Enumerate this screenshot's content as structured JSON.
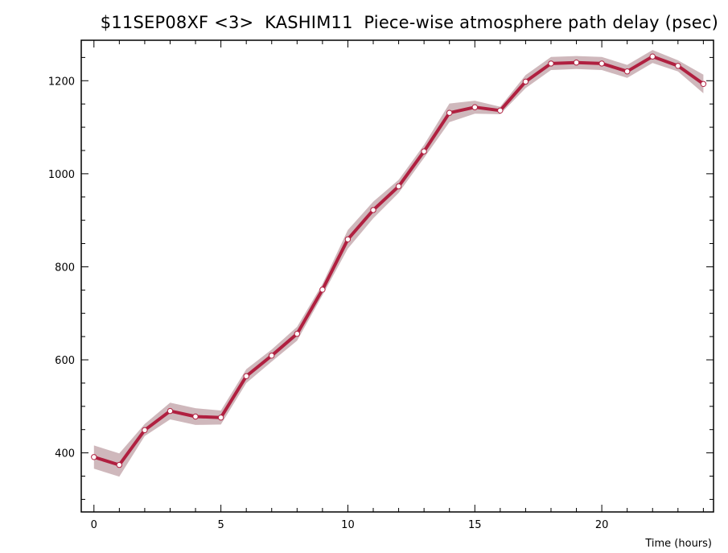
{
  "chart_data": {
    "type": "line",
    "title": "$11SEP08XF <3>  KASHIM11  Piece-wise atmosphere path delay (psec)",
    "xlabel": "Time (hours)",
    "ylabel": "",
    "xlim": [
      -0.5,
      24.4
    ],
    "ylim": [
      273,
      1287
    ],
    "xticks": [
      0,
      5,
      10,
      15,
      20
    ],
    "yticks": [
      400,
      600,
      800,
      1000,
      1200
    ],
    "grid": false,
    "colors": {
      "line": "#b02040",
      "band": "#cfb8bc",
      "marker_fill": "#ffffff"
    },
    "series": [
      {
        "x": [
          0,
          1,
          2,
          3,
          4,
          5,
          6,
          7,
          8,
          9,
          10,
          11,
          12,
          13,
          14,
          15,
          16,
          17,
          18,
          19,
          20,
          21,
          22,
          23,
          24
        ],
        "values": [
          391,
          374,
          449,
          490,
          478,
          476,
          565,
          609,
          656,
          751,
          859,
          922,
          973,
          1048,
          1131,
          1143,
          1136,
          1198,
          1237,
          1239,
          1237,
          1220,
          1252,
          1232,
          1193
        ],
        "uncertainty": [
          25,
          25,
          13,
          18,
          18,
          15,
          15,
          13,
          15,
          12,
          20,
          18,
          14,
          14,
          20,
          14,
          8,
          14,
          14,
          14,
          14,
          14,
          14,
          12,
          20
        ]
      }
    ]
  }
}
